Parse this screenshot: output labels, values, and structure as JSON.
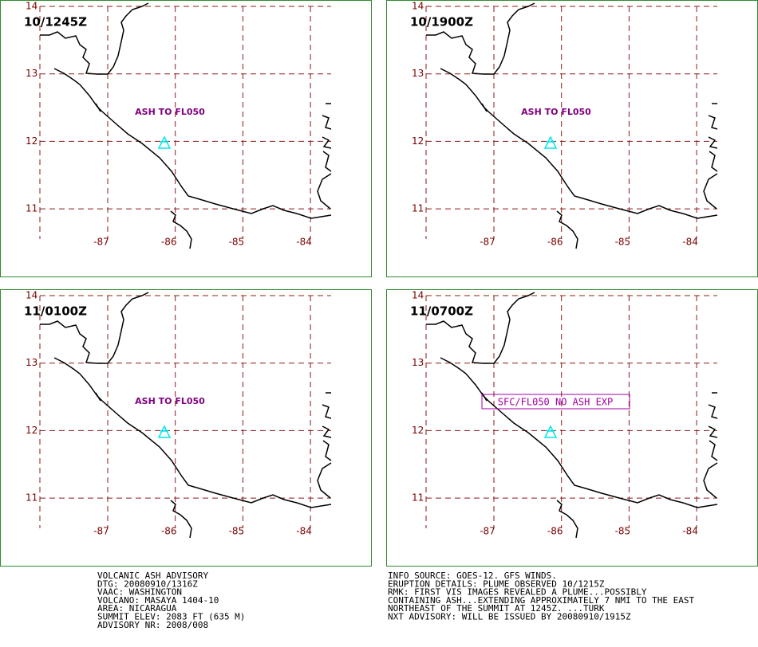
{
  "map": {
    "lat_ticks": [
      14,
      13,
      12,
      11
    ],
    "lon_ticks": [
      -87,
      -86,
      -85,
      -84
    ]
  },
  "panels": [
    {
      "time": "10/1245Z",
      "annotation": "ASH TO FL050"
    },
    {
      "time": "10/1900Z",
      "annotation": "ASH TO FL050"
    },
    {
      "time": "11/0100Z",
      "annotation": "ASH TO FL050"
    },
    {
      "time": "11/0700Z",
      "annotation": "SFC/FL050 NO ASH EXP"
    }
  ],
  "footer": {
    "left": [
      "VOLCANIC ASH ADVISORY",
      "DTG: 20080910/1316Z",
      "VAAC: WASHINGTON",
      "VOLCANO: MASAYA 1404-10",
      "AREA: NICARAGUA",
      "SUMMIT ELEV: 2083 FT (635 M)",
      "ADVISORY NR: 2008/008"
    ],
    "right": [
      "INFO SOURCE: GOES-12. GFS WINDS.",
      "ERUPTION DETAILS: PLUME OBSERVED 10/1215Z",
      "RMK: FIRST VIS IMAGES REVEALED A PLUME...POSSIBLY",
      "CONTAINING ASH...EXTENDING APPROXIMATELY 7 NMI TO THE EAST",
      "NORTHEAST OF THE SUMMIT AT 1245Z. ...TURK",
      "NXT ADVISORY: WILL BE ISSUED BY 20080910/1915Z"
    ]
  }
}
